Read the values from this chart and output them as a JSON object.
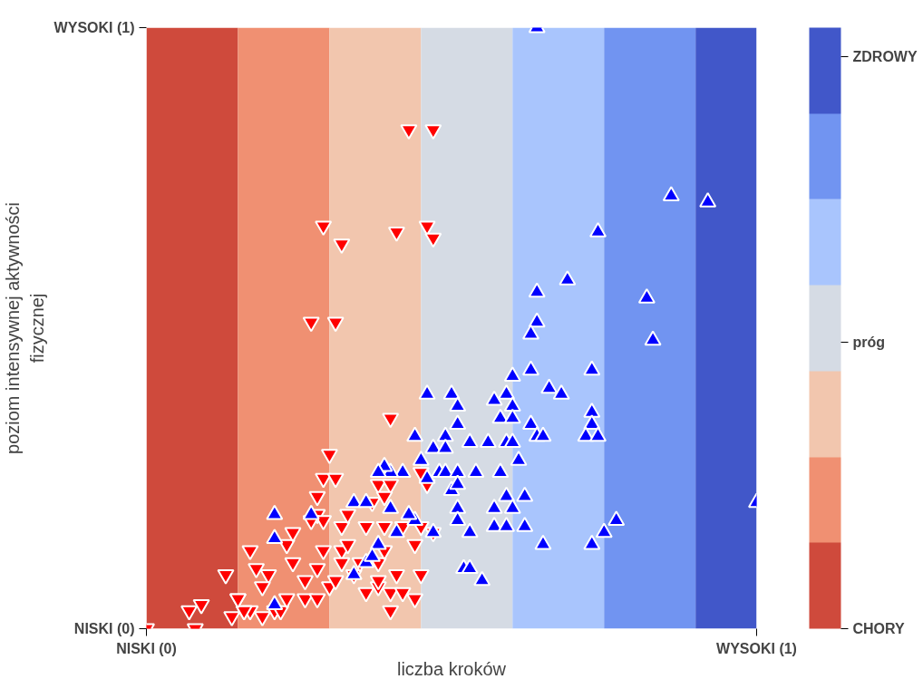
{
  "chart_data": {
    "type": "scatter",
    "xlabel": "liczba kroków",
    "ylabel": "poziom intensywnej aktywności\nfizycznej",
    "xlim": [
      0,
      1
    ],
    "ylim": [
      0,
      1
    ],
    "xticks": [
      {
        "value": 0,
        "label": "NISKI (0)"
      },
      {
        "value": 1,
        "label": "WYSOKI (1)"
      }
    ],
    "yticks": [
      {
        "value": 0,
        "label": "NISKI (0)"
      },
      {
        "value": 1,
        "label": "WYSOKI (1)"
      }
    ],
    "clim": [
      0,
      1.05
    ],
    "cticks": [
      {
        "value": 0,
        "label": "CHORY"
      },
      {
        "value": 0.5,
        "label": "próg"
      },
      {
        "value": 1,
        "label": "ZDROWY"
      }
    ],
    "bands": [
      {
        "axis": "x",
        "from": 0,
        "to": 0.15,
        "color": "#cf4a3c"
      },
      {
        "axis": "x",
        "from": 0.15,
        "to": 0.3,
        "color": "#f09072"
      },
      {
        "axis": "x",
        "from": 0.3,
        "to": 0.45,
        "color": "#f2c6ae"
      },
      {
        "axis": "x",
        "from": 0.45,
        "to": 0.6,
        "color": "#d5dbe4"
      },
      {
        "axis": "x",
        "from": 0.6,
        "to": 0.75,
        "color": "#a9c5fd"
      },
      {
        "axis": "x",
        "from": 0.75,
        "to": 0.9,
        "color": "#7194f1"
      },
      {
        "axis": "x",
        "from": 0.9,
        "to": 1.0,
        "color": "#4157c9"
      }
    ],
    "series": [
      {
        "color": "#ff0000",
        "marker": "triangle_down",
        "x": [
          0.43,
          0.47,
          0.29,
          0.32,
          0.41,
          0.46,
          0.47,
          0.27,
          0.31,
          0.4,
          0.3,
          0.0,
          0.08,
          0.07,
          0.09,
          0.13,
          0.15,
          0.16,
          0.17,
          0.19,
          0.21,
          0.22,
          0.17,
          0.18,
          0.2,
          0.19,
          0.16,
          0.14,
          0.15,
          0.23,
          0.26,
          0.24,
          0.26,
          0.28,
          0.28,
          0.28,
          0.28,
          0.29,
          0.31,
          0.29,
          0.27,
          0.23,
          0.24,
          0.29,
          0.32,
          0.3,
          0.31,
          0.32,
          0.33,
          0.32,
          0.34,
          0.36,
          0.38,
          0.4,
          0.4,
          0.44,
          0.38,
          0.39,
          0.41,
          0.45,
          0.36,
          0.38,
          0.4,
          0.37,
          0.39,
          0.42,
          0.45,
          0.47,
          0.44,
          0.39,
          0.45,
          0.46,
          0.33,
          0.35,
          0.38,
          0.42
        ],
        "values": [
          0.83,
          0.83,
          0.67,
          0.64,
          0.66,
          0.67,
          0.65,
          0.51,
          0.51,
          0.35,
          0.29,
          0.0,
          0.0,
          0.03,
          0.04,
          0.09,
          0.05,
          0.03,
          0.03,
          0.02,
          0.03,
          0.03,
          0.13,
          0.1,
          0.09,
          0.07,
          0.03,
          0.02,
          0.05,
          0.05,
          0.05,
          0.11,
          0.08,
          0.05,
          0.1,
          0.22,
          0.19,
          0.25,
          0.25,
          0.18,
          0.18,
          0.14,
          0.16,
          0.13,
          0.13,
          0.07,
          0.08,
          0.11,
          0.14,
          0.17,
          0.09,
          0.06,
          0.07,
          0.03,
          0.06,
          0.05,
          0.11,
          0.13,
          0.09,
          0.09,
          0.17,
          0.24,
          0.24,
          0.21,
          0.17,
          0.17,
          0.17,
          0.16,
          0.14,
          0.22,
          0.26,
          0.24,
          0.19,
          0.11,
          0.08,
          0.06
        ]
      },
      {
        "color": "#0000ff",
        "marker": "triangle",
        "x": [
          0.64,
          0.86,
          0.92,
          0.74,
          0.69,
          0.64,
          0.82,
          0.64,
          0.63,
          0.83,
          1.0,
          0.63,
          0.73,
          0.6,
          0.46,
          0.5,
          0.51,
          0.57,
          0.59,
          0.66,
          0.68,
          0.6,
          0.58,
          0.6,
          0.73,
          0.73,
          0.51,
          0.63,
          0.44,
          0.49,
          0.56,
          0.59,
          0.6,
          0.64,
          0.72,
          0.74,
          0.47,
          0.49,
          0.53,
          0.65,
          0.48,
          0.49,
          0.51,
          0.54,
          0.58,
          0.61,
          0.45,
          0.42,
          0.4,
          0.39,
          0.38,
          0.5,
          0.51,
          0.59,
          0.62,
          0.6,
          0.57,
          0.51,
          0.51,
          0.44,
          0.41,
          0.43,
          0.34,
          0.36,
          0.4,
          0.47,
          0.53,
          0.57,
          0.59,
          0.62,
          0.65,
          0.73,
          0.75,
          0.77,
          0.52,
          0.53,
          0.55,
          0.21,
          0.21,
          0.27,
          0.34,
          0.36,
          0.38,
          0.21,
          0.37,
          0.46
        ],
        "values": [
          1.0,
          0.72,
          0.71,
          0.66,
          0.58,
          0.56,
          0.55,
          0.51,
          0.49,
          0.48,
          0.21,
          0.43,
          0.43,
          0.42,
          0.39,
          0.39,
          0.37,
          0.38,
          0.39,
          0.4,
          0.39,
          0.37,
          0.35,
          0.35,
          0.36,
          0.34,
          0.34,
          0.34,
          0.32,
          0.32,
          0.31,
          0.31,
          0.31,
          0.32,
          0.32,
          0.32,
          0.3,
          0.3,
          0.31,
          0.32,
          0.26,
          0.26,
          0.26,
          0.26,
          0.26,
          0.28,
          0.28,
          0.26,
          0.26,
          0.27,
          0.26,
          0.23,
          0.24,
          0.22,
          0.22,
          0.2,
          0.2,
          0.2,
          0.18,
          0.18,
          0.16,
          0.19,
          0.21,
          0.21,
          0.2,
          0.16,
          0.16,
          0.17,
          0.17,
          0.17,
          0.14,
          0.14,
          0.16,
          0.18,
          0.1,
          0.1,
          0.08,
          0.19,
          0.15,
          0.19,
          0.09,
          0.11,
          0.14,
          0.04,
          0.12,
          0.25
        ]
      }
    ]
  }
}
